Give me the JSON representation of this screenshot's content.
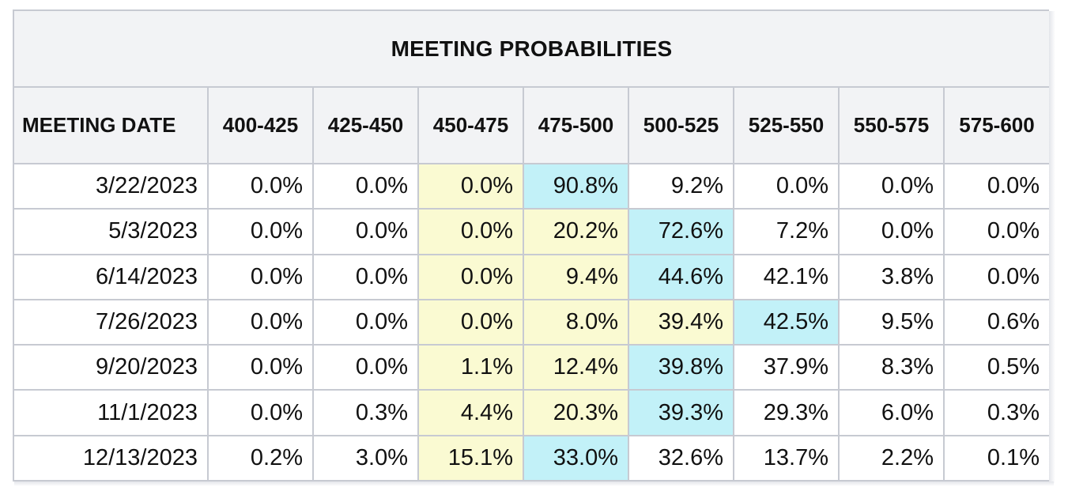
{
  "table": {
    "title": "MEETING PROBABILITIES",
    "headers": [
      "MEETING DATE",
      "400-425",
      "425-450",
      "450-475",
      "475-500",
      "500-525",
      "525-550",
      "550-575",
      "575-600"
    ],
    "rows": [
      [
        "3/22/2023",
        "0.0%",
        "0.0%",
        "0.0%",
        "90.8%",
        "9.2%",
        "0.0%",
        "0.0%",
        "0.0%"
      ],
      [
        "5/3/2023",
        "0.0%",
        "0.0%",
        "0.0%",
        "20.2%",
        "72.6%",
        "7.2%",
        "0.0%",
        "0.0%"
      ],
      [
        "6/14/2023",
        "0.0%",
        "0.0%",
        "0.0%",
        "9.4%",
        "44.6%",
        "42.1%",
        "3.8%",
        "0.0%"
      ],
      [
        "7/26/2023",
        "0.0%",
        "0.0%",
        "0.0%",
        "8.0%",
        "39.4%",
        "42.5%",
        "9.5%",
        "0.6%"
      ],
      [
        "9/20/2023",
        "0.0%",
        "0.0%",
        "1.1%",
        "12.4%",
        "39.8%",
        "37.9%",
        "8.3%",
        "0.5%"
      ],
      [
        "11/1/2023",
        "0.0%",
        "0.3%",
        "4.4%",
        "20.3%",
        "39.3%",
        "29.3%",
        "6.0%",
        "0.3%"
      ],
      [
        "12/13/2023",
        "0.2%",
        "3.0%",
        "15.1%",
        "33.0%",
        "32.6%",
        "13.7%",
        "2.2%",
        "0.1%"
      ]
    ],
    "highlights": [
      [
        "",
        "",
        "",
        "yellow",
        "cyan",
        "",
        "",
        "",
        ""
      ],
      [
        "",
        "",
        "",
        "yellow",
        "yellow",
        "cyan",
        "",
        "",
        ""
      ],
      [
        "",
        "",
        "",
        "yellow",
        "yellow",
        "cyan",
        "",
        "",
        ""
      ],
      [
        "",
        "",
        "",
        "yellow",
        "yellow",
        "yellow",
        "cyan",
        "",
        ""
      ],
      [
        "",
        "",
        "",
        "yellow",
        "yellow",
        "cyan",
        "",
        "",
        ""
      ],
      [
        "",
        "",
        "",
        "yellow",
        "yellow",
        "cyan",
        "",
        "",
        ""
      ],
      [
        "",
        "",
        "",
        "yellow",
        "cyan",
        "",
        "",
        "",
        ""
      ]
    ],
    "colors": {
      "yellow": "#fafad2",
      "cyan": "#c2f1f8",
      "header_bg": "#f2f3f5",
      "border": "#c7cad2"
    }
  }
}
